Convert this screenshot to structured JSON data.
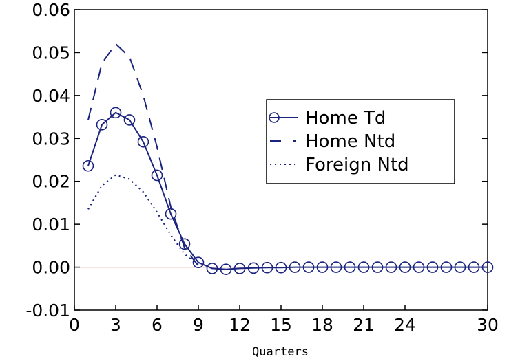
{
  "chart_data": {
    "type": "line",
    "title": "",
    "xlabel": "Quarters",
    "ylabel": "",
    "xlim": [
      0,
      30
    ],
    "ylim": [
      -0.01,
      0.06
    ],
    "x_ticks": [
      "0",
      "3",
      "6",
      "9",
      "12",
      "15",
      "18",
      "21",
      "24",
      "30"
    ],
    "y_ticks": [
      "0.06",
      "0.05",
      "0.04",
      "0.03",
      "0.02",
      "0.01",
      "0.00",
      "-0.01"
    ],
    "grid": false,
    "legend_position": "right",
    "zero_line_color": "#cc2222",
    "series": [
      {
        "name": "Home Td",
        "style": "solid-with-circles",
        "color": "#1a237e",
        "x": [
          1,
          2,
          3,
          4,
          5,
          6,
          7,
          8,
          9,
          10,
          11,
          12,
          13,
          14,
          15,
          16,
          17,
          18,
          19,
          20,
          21,
          22,
          23,
          24,
          25,
          26,
          27,
          28,
          29,
          30
        ],
        "values": [
          0.0236,
          0.0332,
          0.036,
          0.0343,
          0.0292,
          0.0214,
          0.0124,
          0.0054,
          0.0011,
          -0.0003,
          -0.0005,
          -0.0003,
          -0.0002,
          -0.0001,
          -0.0001,
          0,
          0,
          0,
          0,
          0,
          0,
          0,
          0,
          0,
          0,
          0,
          0,
          0,
          0,
          0
        ]
      },
      {
        "name": "Home Ntd",
        "style": "dashed",
        "color": "#1a237e",
        "x": [
          1,
          2,
          3,
          4,
          5,
          6,
          7,
          8,
          9,
          10,
          11,
          12,
          13,
          14,
          15,
          16,
          17,
          18,
          19,
          20,
          21,
          22,
          23,
          24,
          25,
          26,
          27,
          28,
          29,
          30
        ],
        "values": [
          0.0343,
          0.0475,
          0.052,
          0.049,
          0.04,
          0.028,
          0.014,
          0.0045,
          0.0003,
          -0.0005,
          -0.0005,
          -0.0003,
          -0.0002,
          -0.0001,
          0,
          0,
          0,
          0,
          0,
          0,
          0,
          0,
          0,
          0,
          0,
          0,
          0,
          0,
          0,
          0
        ]
      },
      {
        "name": "Foreign Ntd",
        "style": "dotted",
        "color": "#1a237e",
        "x": [
          1,
          2,
          3,
          4,
          5,
          6,
          7,
          8,
          9,
          10,
          11,
          12,
          13,
          14,
          15,
          16,
          17,
          18,
          19,
          20,
          21,
          22,
          23,
          24,
          25,
          26,
          27,
          28,
          29,
          30
        ],
        "values": [
          0.0135,
          0.019,
          0.0215,
          0.0205,
          0.0175,
          0.0128,
          0.0075,
          0.003,
          0.0006,
          -0.0002,
          -0.0003,
          -0.0002,
          -0.0001,
          0,
          0,
          0,
          0,
          0,
          0,
          0,
          0,
          0,
          0,
          0,
          0,
          0,
          0,
          0,
          0,
          0
        ]
      }
    ]
  }
}
